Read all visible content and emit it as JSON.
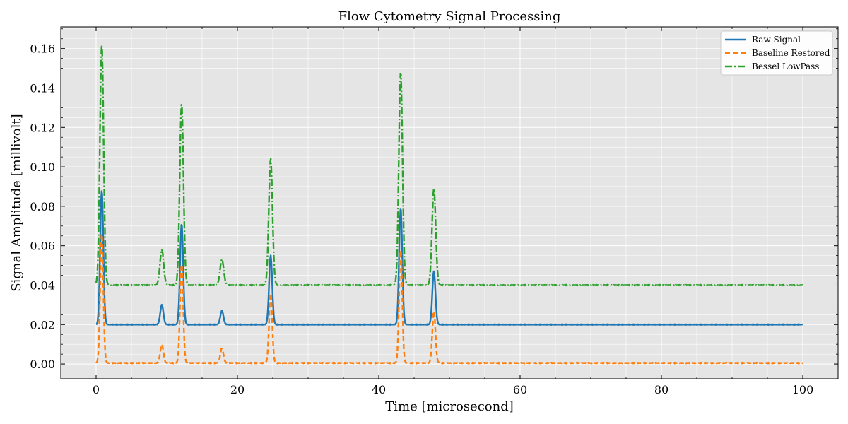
{
  "chart_data": {
    "type": "line",
    "title": "Flow Cytometry Signal Processing",
    "xlabel": "Time [microsecond]",
    "ylabel": "Signal Amplitude [millivolt]",
    "xlim": [
      -5,
      105
    ],
    "ylim": [
      -0.0075,
      0.171
    ],
    "xticks": [
      0,
      20,
      40,
      60,
      80,
      100
    ],
    "xtick_labels": [
      "0",
      "20",
      "40",
      "60",
      "80",
      "100"
    ],
    "yticks": [
      0.0,
      0.02,
      0.04,
      0.06,
      0.08,
      0.1,
      0.12,
      0.14,
      0.16
    ],
    "ytick_labels": [
      "0.00",
      "0.02",
      "0.04",
      "0.06",
      "0.08",
      "0.10",
      "0.12",
      "0.14",
      "0.16"
    ],
    "grid": true,
    "background": "#e5e5e5",
    "legend_position": "top-right",
    "x_range": [
      0,
      100
    ],
    "pulses": [
      {
        "center": 0.8,
        "raw_peak": 0.088,
        "restored_peak": 0.066,
        "filtered_peak": 0.162
      },
      {
        "center": 9.3,
        "raw_peak": 0.03,
        "restored_peak": 0.01,
        "filtered_peak": 0.058
      },
      {
        "center": 12.1,
        "raw_peak": 0.071,
        "restored_peak": 0.051,
        "filtered_peak": 0.132
      },
      {
        "center": 17.8,
        "raw_peak": 0.027,
        "restored_peak": 0.008,
        "filtered_peak": 0.053
      },
      {
        "center": 24.7,
        "raw_peak": 0.055,
        "restored_peak": 0.036,
        "filtered_peak": 0.104
      },
      {
        "center": 43.1,
        "raw_peak": 0.079,
        "restored_peak": 0.058,
        "filtered_peak": 0.148
      },
      {
        "center": 47.8,
        "raw_peak": 0.047,
        "restored_peak": 0.027,
        "filtered_peak": 0.089
      }
    ],
    "series": [
      {
        "name": "Raw Signal",
        "color": "#1f77b4",
        "dash": "solid",
        "baseline": 0.02
      },
      {
        "name": "Baseline Restored",
        "color": "#ff7f0e",
        "dash": "dashed",
        "baseline": 0.0005
      },
      {
        "name": "Bessel LowPass",
        "color": "#2ca02c",
        "dash": "dashdot",
        "baseline": 0.04
      }
    ]
  }
}
